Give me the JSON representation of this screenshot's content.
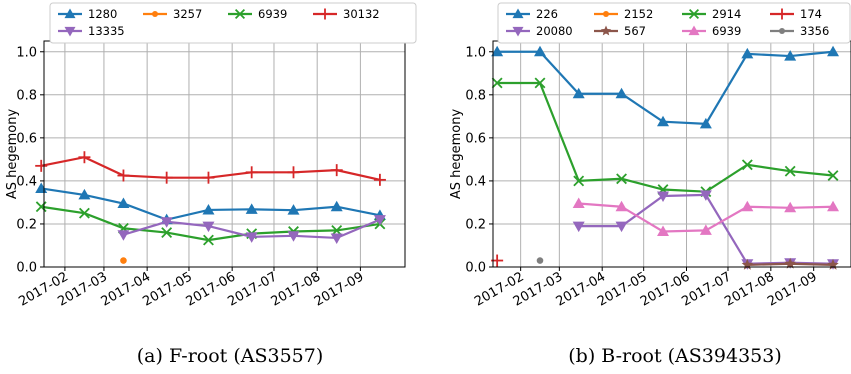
{
  "chart_data": [
    {
      "type": "line",
      "caption": "(a) F-root (AS3557)",
      "ylabel": "AS hegemony",
      "ylim": [
        0,
        1.05
      ],
      "yticks": [
        "0.0",
        "0.2",
        "0.4",
        "0.6",
        "0.8",
        "1.0"
      ],
      "xticks": [
        "2017-02",
        "2017-03",
        "2017-04",
        "2017-05",
        "2017-06",
        "2017-07",
        "2017-08",
        "2017-09"
      ],
      "grid": true,
      "legend_placement": "top",
      "series": [
        {
          "name": "1280",
          "color": "#1f77b4",
          "marker": "triangle-up",
          "x": [
            "2017-01-15",
            "2017-02-15",
            "2017-03-15",
            "2017-04-15",
            "2017-05-15",
            "2017-06-15",
            "2017-07-15",
            "2017-08-15",
            "2017-09-15"
          ],
          "values": [
            0.365,
            0.335,
            0.295,
            0.22,
            0.265,
            0.268,
            0.264,
            0.28,
            0.24
          ]
        },
        {
          "name": "3257",
          "color": "#ff7f0e",
          "marker": "circle",
          "x": [
            "2017-03-15"
          ],
          "values": [
            0.03
          ]
        },
        {
          "name": "6939",
          "color": "#2ca02c",
          "marker": "x",
          "x": [
            "2017-01-15",
            "2017-02-15",
            "2017-03-15",
            "2017-04-15",
            "2017-05-15",
            "2017-06-15",
            "2017-07-15",
            "2017-08-15",
            "2017-09-15"
          ],
          "values": [
            0.28,
            0.25,
            0.18,
            0.16,
            0.125,
            0.155,
            0.165,
            0.17,
            0.2
          ]
        },
        {
          "name": "30132",
          "color": "#d62728",
          "marker": "plus",
          "x": [
            "2017-01-15",
            "2017-02-15",
            "2017-03-15",
            "2017-04-15",
            "2017-05-15",
            "2017-06-15",
            "2017-07-15",
            "2017-08-15",
            "2017-09-15"
          ],
          "values": [
            0.47,
            0.51,
            0.425,
            0.415,
            0.415,
            0.44,
            0.44,
            0.45,
            0.405
          ]
        },
        {
          "name": "13335",
          "color": "#9467bd",
          "marker": "triangle-down",
          "x": [
            "2017-03-15",
            "2017-04-15",
            "2017-05-15",
            "2017-06-15",
            "2017-07-15",
            "2017-08-15",
            "2017-09-15"
          ],
          "values": [
            0.15,
            0.21,
            0.19,
            0.14,
            0.145,
            0.135,
            0.22
          ]
        }
      ]
    },
    {
      "type": "line",
      "caption": "(b) B-root (AS394353)",
      "ylabel": "AS hegemony",
      "ylim": [
        0,
        1.05
      ],
      "yticks": [
        "0.0",
        "0.2",
        "0.4",
        "0.6",
        "0.8",
        "1.0"
      ],
      "xticks": [
        "2017-02",
        "2017-03",
        "2017-04",
        "2017-05",
        "2017-06",
        "2017-07",
        "2017-08",
        "2017-09"
      ],
      "grid": true,
      "legend_placement": "top",
      "series": [
        {
          "name": "226",
          "color": "#1f77b4",
          "marker": "triangle-up",
          "x": [
            "2017-01-15",
            "2017-02-15",
            "2017-03-15",
            "2017-04-15",
            "2017-05-15",
            "2017-06-15",
            "2017-07-15",
            "2017-08-15",
            "2017-09-15"
          ],
          "values": [
            1.0,
            1.0,
            0.805,
            0.805,
            0.675,
            0.665,
            0.99,
            0.98,
            1.0
          ]
        },
        {
          "name": "2152",
          "color": "#ff7f0e",
          "marker": "circle",
          "x": [],
          "values": []
        },
        {
          "name": "2914",
          "color": "#2ca02c",
          "marker": "x",
          "x": [
            "2017-01-15",
            "2017-02-15",
            "2017-03-15",
            "2017-04-15",
            "2017-05-15",
            "2017-06-15",
            "2017-07-15",
            "2017-08-15",
            "2017-09-15"
          ],
          "values": [
            0.855,
            0.855,
            0.4,
            0.41,
            0.36,
            0.35,
            0.475,
            0.445,
            0.425
          ]
        },
        {
          "name": "174",
          "color": "#d62728",
          "marker": "plus",
          "x": [
            "2017-01-15"
          ],
          "values": [
            0.03
          ]
        },
        {
          "name": "20080",
          "color": "#9467bd",
          "marker": "triangle-down",
          "x": [
            "2017-03-15",
            "2017-04-15",
            "2017-05-15",
            "2017-06-15",
            "2017-07-15",
            "2017-08-15",
            "2017-09-15"
          ],
          "values": [
            0.19,
            0.19,
            0.33,
            0.335,
            0.015,
            0.02,
            0.015
          ]
        },
        {
          "name": "567",
          "color": "#8c564b",
          "marker": "star",
          "x": [
            "2017-07-15",
            "2017-08-15",
            "2017-09-15"
          ],
          "values": [
            0.01,
            0.015,
            0.01
          ]
        },
        {
          "name": "6939",
          "color": "#e377c2",
          "marker": "triangle-up",
          "x": [
            "2017-03-15",
            "2017-04-15",
            "2017-05-15",
            "2017-06-15",
            "2017-07-15",
            "2017-08-15",
            "2017-09-15"
          ],
          "values": [
            0.295,
            0.28,
            0.165,
            0.17,
            0.28,
            0.275,
            0.28
          ]
        },
        {
          "name": "3356",
          "color": "#7f7f7f",
          "marker": "circle",
          "x": [
            "2017-02-15"
          ],
          "values": [
            0.03
          ]
        }
      ]
    }
  ]
}
